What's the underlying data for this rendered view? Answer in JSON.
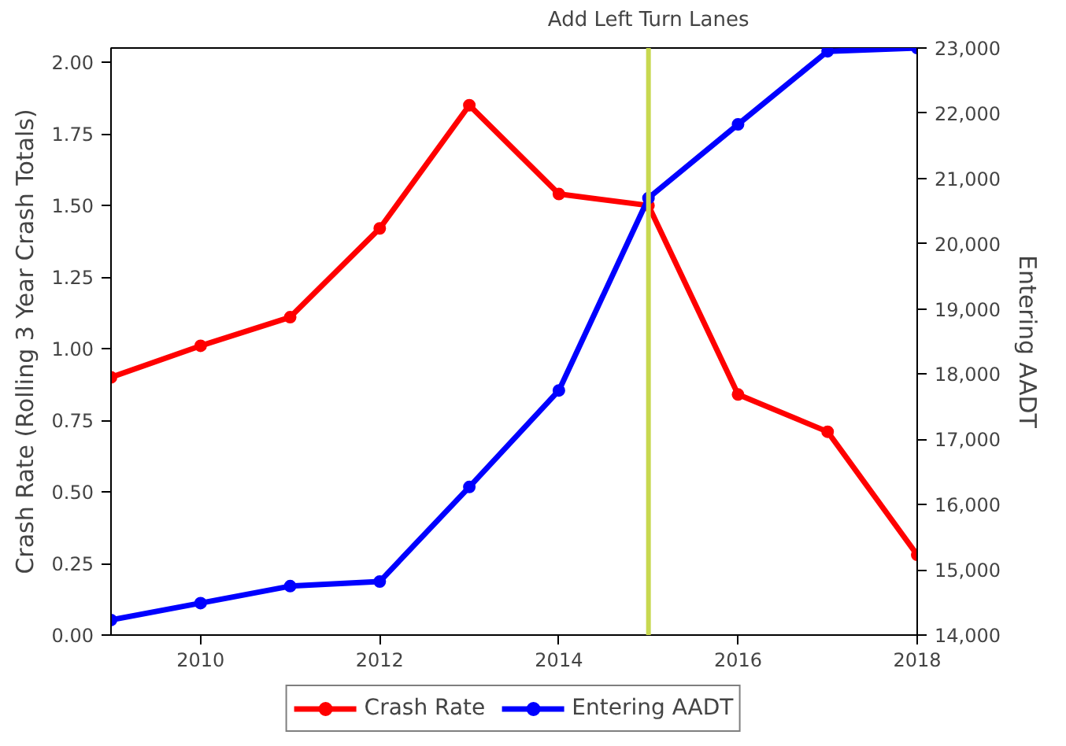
{
  "chart_data": {
    "type": "line",
    "ylabel": "Crash Rate (Rolling 3 Year Crash Totals)",
    "y2label": "Entering AADT",
    "x": [
      2009,
      2010,
      2011,
      2012,
      2013,
      2014,
      2015,
      2016,
      2017,
      2018
    ],
    "series": [
      {
        "name": "Crash Rate",
        "color": "#ff0000",
        "values": [
          0.9,
          1.01,
          1.11,
          1.42,
          1.85,
          1.54,
          1.5,
          0.84,
          0.71,
          0.28
        ]
      },
      {
        "name": "Entering AADT",
        "color": "#0000ff",
        "axis": "y2",
        "values": [
          14230,
          14490,
          14750,
          14820,
          16270,
          17750,
          20700,
          21830,
          22950,
          23000
        ]
      }
    ],
    "xlim": [
      2009,
      2018
    ],
    "xticks": [
      2010,
      2012,
      2014,
      2016,
      2018
    ],
    "ylim": [
      0,
      2.05
    ],
    "yticks": [
      {
        "value": 0,
        "label": "0.00"
      },
      {
        "value": 0.25,
        "label": "0.25"
      },
      {
        "value": 0.5,
        "label": "0.50"
      },
      {
        "value": 0.75,
        "label": "0.75"
      },
      {
        "value": 1,
        "label": "1.00"
      },
      {
        "value": 1.25,
        "label": "1.25"
      },
      {
        "value": 1.5,
        "label": "1.50"
      },
      {
        "value": 1.75,
        "label": "1.75"
      },
      {
        "value": 2,
        "label": "2.00"
      }
    ],
    "y2lim": [
      14000,
      23000
    ],
    "y2ticks": [
      {
        "value": 14000,
        "label": "14,000"
      },
      {
        "value": 15000,
        "label": "15,000"
      },
      {
        "value": 16000,
        "label": "16,000"
      },
      {
        "value": 17000,
        "label": "17,000"
      },
      {
        "value": 18000,
        "label": "18,000"
      },
      {
        "value": 19000,
        "label": "19,000"
      },
      {
        "value": 20000,
        "label": "20,000"
      },
      {
        "value": 21000,
        "label": "21,000"
      },
      {
        "value": 22000,
        "label": "22,000"
      },
      {
        "value": 23000,
        "label": "23,000"
      }
    ],
    "ref_lines": [
      {
        "axis": "x",
        "value": 2015,
        "label": "Add Left Turn Lanes",
        "color": "#c8d850"
      }
    ],
    "grid": false,
    "legend": "bottom",
    "marker": "circle",
    "line_style": "solid"
  }
}
